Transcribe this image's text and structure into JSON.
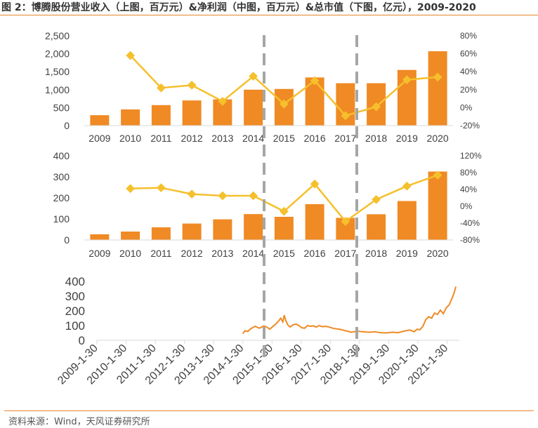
{
  "title": "图 2：博腾股份营业收入（上图，百万元）&净利润（中图，百万元）&总市值（下图，亿元），2009-2020",
  "source": "资料来源：Wind，天风证券研究所",
  "colors": {
    "bar": "#f08a24",
    "line": "#f5c02c",
    "axis": "#d9d9d9",
    "text": "#404040",
    "dash": "#a6a6a6",
    "rule": "#e8842a"
  },
  "chart_data": [
    {
      "id": "revenue",
      "type": "bar",
      "categories": [
        "2009",
        "2010",
        "2011",
        "2012",
        "2013",
        "2014",
        "2015",
        "2016",
        "2017",
        "2018",
        "2019",
        "2020"
      ],
      "series": [
        {
          "type": "bar",
          "axis": "left",
          "values": [
            290,
            450,
            570,
            700,
            730,
            1000,
            1020,
            1340,
            1180,
            1180,
            1550,
            2070
          ]
        },
        {
          "type": "line",
          "axis": "right",
          "values": [
            null,
            58,
            22,
            25,
            7,
            35,
            4,
            30,
            -9,
            1,
            31,
            34
          ]
        }
      ],
      "left_axis": {
        "range": [
          0,
          2500
        ],
        "ticks": [
          0,
          500,
          1000,
          1500,
          2000,
          2500
        ],
        "tick_labels": [
          "0",
          "500",
          "1,000",
          "1,500",
          "2,000",
          "2,500"
        ]
      },
      "right_axis": {
        "range": [
          -20,
          80
        ],
        "ticks": [
          -20,
          0,
          20,
          40,
          60,
          80
        ],
        "tick_labels": [
          "-20%",
          "0%",
          "20%",
          "40%",
          "60%",
          "80%"
        ]
      }
    },
    {
      "id": "net_profit",
      "type": "bar",
      "categories": [
        "2009",
        "2010",
        "2011",
        "2012",
        "2013",
        "2014",
        "2015",
        "2016",
        "2017",
        "2018",
        "2019",
        "2020"
      ],
      "series": [
        {
          "type": "bar",
          "axis": "left",
          "values": [
            27,
            40,
            60,
            78,
            98,
            123,
            110,
            170,
            105,
            122,
            185,
            325
          ]
        },
        {
          "type": "line",
          "axis": "right",
          "values": [
            null,
            42,
            44,
            29,
            25,
            25,
            -12,
            53,
            -36,
            16,
            48,
            74
          ]
        }
      ],
      "left_axis": {
        "range": [
          0,
          400
        ],
        "ticks": [
          0,
          100,
          200,
          300,
          400
        ],
        "tick_labels": [
          "0",
          "100",
          "200",
          "300",
          "400"
        ]
      },
      "right_axis": {
        "range": [
          -80,
          120
        ],
        "ticks": [
          -80,
          -40,
          0,
          40,
          80,
          120
        ],
        "tick_labels": [
          "-80%",
          "-40%",
          "0%",
          "40%",
          "80%",
          "120%"
        ]
      }
    },
    {
      "id": "market_cap",
      "type": "line",
      "x_tick_labels": [
        "2009-1-30",
        "2010-1-30",
        "2011-1-30",
        "2012-1-30",
        "2013-1-30",
        "2014-1-30",
        "2015-1-30",
        "2016-1-30",
        "2017-1-30",
        "2018-1-30",
        "2019-1-30",
        "2020-1-30",
        "2021-1-30"
      ],
      "x_range": [
        2009.08,
        2021.5
      ],
      "y_axis": {
        "range": [
          0,
          400
        ],
        "ticks": [
          0,
          100,
          200,
          300,
          400
        ],
        "tick_labels": [
          "0",
          "100",
          "200",
          "300",
          "400"
        ]
      },
      "series": [
        {
          "x": [
            2014.08,
            2014.15,
            2014.25,
            2014.35,
            2014.5,
            2014.65,
            2014.8,
            2014.9,
            2015.0,
            2015.1,
            2015.2,
            2015.3,
            2015.38,
            2015.45,
            2015.5,
            2015.55,
            2015.62,
            2015.7,
            2015.8,
            2015.9,
            2016.0,
            2016.1,
            2016.2,
            2016.3,
            2016.4,
            2016.5,
            2016.6,
            2016.7,
            2016.8,
            2016.9,
            2017.0,
            2017.2,
            2017.4,
            2017.6,
            2017.8,
            2018.0,
            2018.2,
            2018.4,
            2018.6,
            2018.8,
            2019.0,
            2019.2,
            2019.4,
            2019.6,
            2019.8,
            2019.95,
            2020.05,
            2020.15,
            2020.25,
            2020.35,
            2020.45,
            2020.55,
            2020.65,
            2020.75,
            2020.85,
            2020.95,
            2021.05,
            2021.15,
            2021.25,
            2021.32,
            2021.38
          ],
          "y": [
            45,
            65,
            60,
            78,
            95,
            82,
            97,
            90,
            75,
            92,
            108,
            130,
            150,
            125,
            170,
            135,
            105,
            90,
            105,
            110,
            100,
            85,
            82,
            100,
            95,
            98,
            90,
            100,
            92,
            95,
            92,
            80,
            75,
            65,
            55,
            62,
            58,
            55,
            58,
            52,
            50,
            55,
            52,
            62,
            70,
            58,
            75,
            72,
            95,
            140,
            160,
            150,
            185,
            175,
            205,
            180,
            220,
            240,
            285,
            320,
            365
          ]
        }
      ]
    }
  ]
}
